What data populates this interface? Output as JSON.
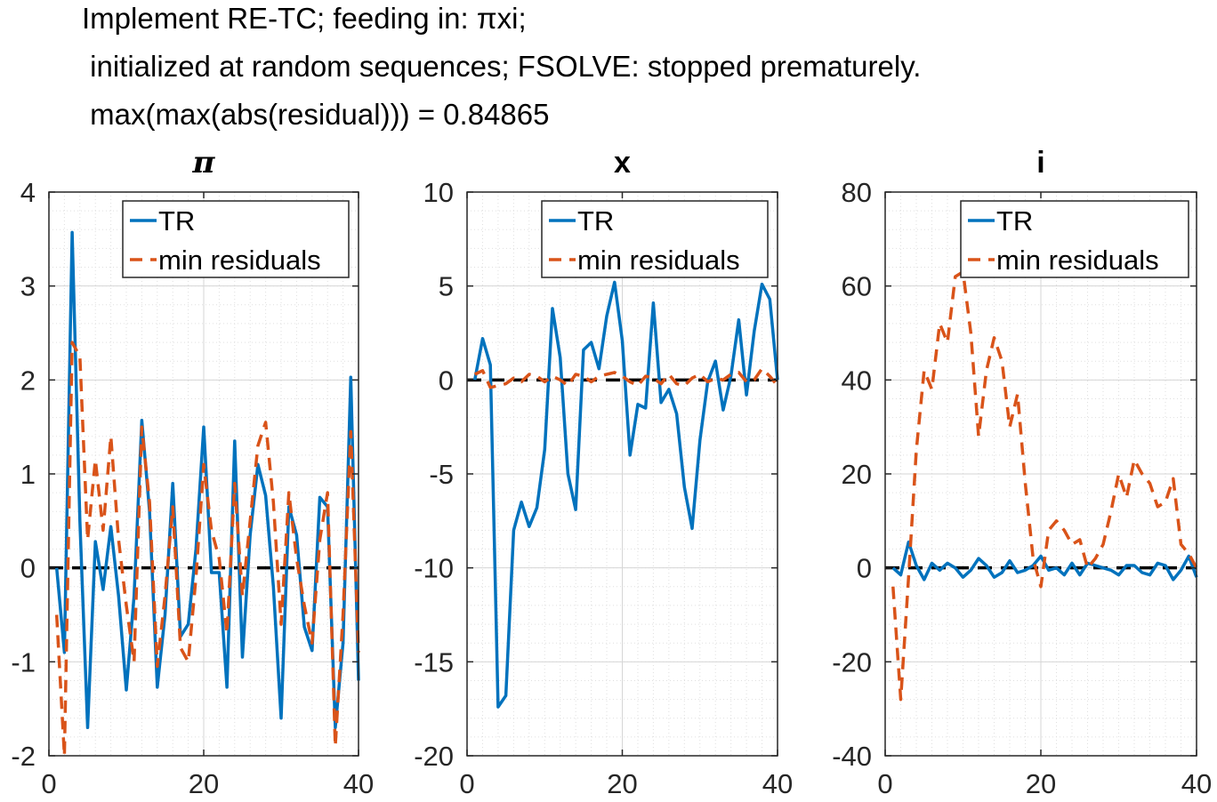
{
  "figure": {
    "title_lines": [
      "Implement RE-TC; feeding in: πxi;",
      " initialized at random sequences; FSOLVE: stopped prematurely.",
      " max(max(abs(residual))) = 0.84865"
    ]
  },
  "colors": {
    "TR": "#0072BD",
    "min_residuals": "#D95319",
    "zero_line": "#000000",
    "grid": "#DFDFDF",
    "axes": "#262626"
  },
  "chart_data": [
    {
      "type": "line",
      "title": "π",
      "xlim": [
        0,
        40
      ],
      "ylim": [
        -2,
        4
      ],
      "xticks": [
        0,
        20,
        40
      ],
      "yticks": [
        -2,
        -1,
        0,
        1,
        2,
        3,
        4
      ],
      "grid": true,
      "minor_grid": true,
      "legend": "top-right",
      "x": [
        1,
        2,
        3,
        4,
        5,
        6,
        7,
        8,
        9,
        10,
        11,
        12,
        13,
        14,
        15,
        16,
        17,
        18,
        19,
        20,
        21,
        22,
        23,
        24,
        25,
        26,
        27,
        28,
        29,
        30,
        31,
        32,
        33,
        34,
        35,
        36,
        37,
        38,
        39,
        40
      ],
      "series": [
        {
          "name": "TR",
          "style": "solid",
          "values": [
            0.0,
            -0.9,
            3.57,
            0.5,
            -1.7,
            0.28,
            -0.23,
            0.44,
            -0.3,
            -1.3,
            -0.3,
            1.57,
            0.6,
            -1.27,
            -0.5,
            0.9,
            -0.73,
            -0.6,
            0.2,
            1.5,
            -0.05,
            -0.05,
            -1.27,
            1.35,
            -0.95,
            0.35,
            1.1,
            0.77,
            -0.2,
            -1.6,
            0.65,
            0.35,
            -0.63,
            -0.88,
            0.75,
            0.65,
            -1.7,
            -0.8,
            2.03,
            -1.2
          ]
        },
        {
          "name": "min residuals",
          "style": "dashed",
          "values": [
            -0.5,
            -2.0,
            2.4,
            2.25,
            0.3,
            1.15,
            0.4,
            1.4,
            0.3,
            -0.4,
            -1.0,
            1.5,
            0.7,
            -1.05,
            -0.3,
            0.65,
            -0.85,
            -1.0,
            -0.1,
            1.1,
            0.4,
            0.1,
            -0.7,
            0.9,
            -0.3,
            0.5,
            1.3,
            1.55,
            0.7,
            -0.6,
            0.8,
            0.1,
            -0.4,
            -0.8,
            0.3,
            0.8,
            -1.9,
            -0.5,
            1.45,
            -0.9
          ]
        }
      ]
    },
    {
      "type": "line",
      "title": "x",
      "xlim": [
        0,
        40
      ],
      "ylim": [
        -20,
        10
      ],
      "xticks": [
        0,
        20,
        40
      ],
      "yticks": [
        -20,
        -15,
        -10,
        -5,
        0,
        5,
        10
      ],
      "grid": true,
      "minor_grid": true,
      "legend": "top-right",
      "x": [
        1,
        2,
        3,
        4,
        5,
        6,
        7,
        8,
        9,
        10,
        11,
        12,
        13,
        14,
        15,
        16,
        17,
        18,
        19,
        20,
        21,
        22,
        23,
        24,
        25,
        26,
        27,
        28,
        29,
        30,
        31,
        32,
        33,
        34,
        35,
        36,
        37,
        38,
        39,
        40
      ],
      "series": [
        {
          "name": "TR",
          "style": "solid",
          "values": [
            0.0,
            2.2,
            0.8,
            -17.4,
            -16.8,
            -8.0,
            -6.5,
            -7.8,
            -6.8,
            -3.7,
            3.8,
            1.2,
            -5.0,
            -6.9,
            1.6,
            2.0,
            0.6,
            3.4,
            5.2,
            2.1,
            -4.0,
            -1.3,
            -1.5,
            4.1,
            -1.2,
            -0.5,
            -1.8,
            -5.7,
            -7.9,
            -3.2,
            -0.1,
            1.0,
            -1.6,
            0.2,
            3.2,
            -0.8,
            2.6,
            5.1,
            4.3,
            0.0
          ]
        },
        {
          "name": "min residuals",
          "style": "dashed",
          "values": [
            0.3,
            0.5,
            -0.4,
            -0.3,
            -0.2,
            0.1,
            -0.1,
            0.3,
            0.2,
            -0.1,
            0.2,
            0.0,
            -0.3,
            0.3,
            0.2,
            -0.1,
            0.2,
            0.3,
            0.4,
            0.2,
            -0.1,
            -0.3,
            0.2,
            0.1,
            -0.2,
            0.3,
            -0.2,
            -0.3,
            0.1,
            0.3,
            -0.1,
            0.1,
            0.0,
            0.3,
            0.4,
            -0.1,
            0.0,
            0.6,
            0.2,
            -0.3
          ]
        }
      ]
    },
    {
      "type": "line",
      "title": "i",
      "xlim": [
        0,
        40
      ],
      "ylim": [
        -40,
        80
      ],
      "xticks": [
        0,
        20,
        40
      ],
      "yticks": [
        -40,
        -20,
        0,
        20,
        40,
        60,
        80
      ],
      "grid": true,
      "minor_grid": true,
      "legend": "top-right",
      "x": [
        1,
        2,
        3,
        4,
        5,
        6,
        7,
        8,
        9,
        10,
        11,
        12,
        13,
        14,
        15,
        16,
        17,
        18,
        19,
        20,
        21,
        22,
        23,
        24,
        25,
        26,
        27,
        28,
        29,
        30,
        31,
        32,
        33,
        34,
        35,
        36,
        37,
        38,
        39,
        40
      ],
      "series": [
        {
          "name": "TR",
          "style": "solid",
          "values": [
            0.0,
            -1.5,
            5.5,
            0.5,
            -2.5,
            1.0,
            -0.5,
            1.0,
            0.0,
            -2.0,
            -0.5,
            2.0,
            0.5,
            -2.0,
            -1.0,
            1.5,
            -1.0,
            -0.5,
            0.5,
            2.5,
            -0.5,
            0.0,
            -1.5,
            1.0,
            -1.5,
            1.0,
            0.5,
            0.0,
            -0.5,
            -1.5,
            0.5,
            0.5,
            -1.0,
            -1.5,
            1.0,
            0.5,
            -2.5,
            -0.5,
            2.5,
            -2.0
          ]
        },
        {
          "name": "min residuals",
          "style": "dashed",
          "values": [
            -4.0,
            -28.0,
            -2.0,
            25.0,
            42.0,
            38.0,
            52.0,
            48.0,
            62.0,
            63.0,
            50.0,
            28.0,
            42.0,
            49.0,
            44.0,
            30.0,
            37.0,
            18.0,
            2.0,
            -4.0,
            8.0,
            10.0,
            8.0,
            5.0,
            6.0,
            0.0,
            2.0,
            5.0,
            12.0,
            20.0,
            15.0,
            23.0,
            20.0,
            18.0,
            13.0,
            14.0,
            19.0,
            5.0,
            3.0,
            0.0
          ]
        }
      ]
    }
  ]
}
